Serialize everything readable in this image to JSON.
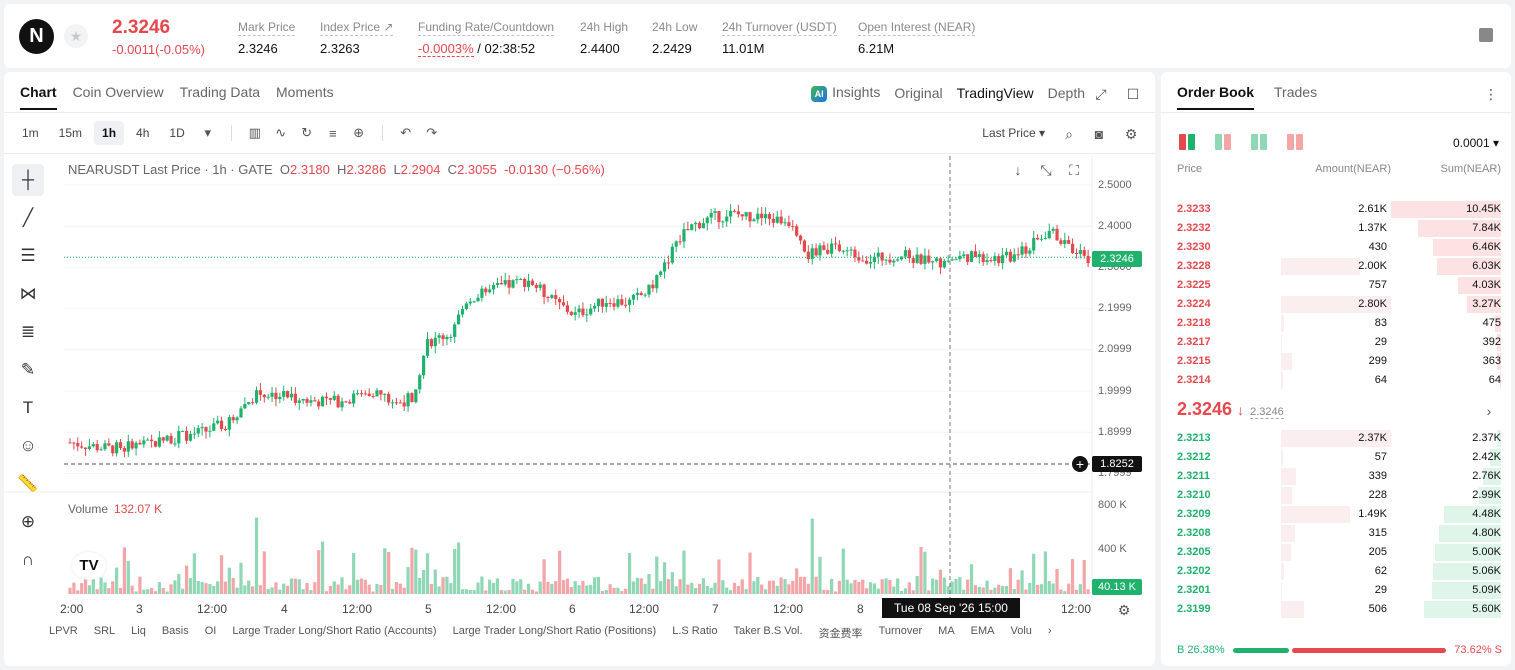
{
  "ticker": {
    "logo": "N",
    "price": "2.3246",
    "change": "-0.0011(-0.05%)",
    "stats": [
      {
        "label": "Mark Price",
        "value": "2.3246"
      },
      {
        "label": "Index Price ↗",
        "value": "2.3263"
      },
      {
        "label": "Funding Rate/Countdown",
        "value": "-0.0003%",
        "value2": "/ 02:38:52"
      },
      {
        "label": "24h High",
        "value": "2.4400"
      },
      {
        "label": "24h Low",
        "value": "2.2429"
      },
      {
        "label": "24h Turnover (USDT)",
        "value": "11.01M"
      },
      {
        "label": "Open Interest (NEAR)",
        "value": "6.21M"
      }
    ]
  },
  "chart_tabs": [
    "Chart",
    "Coin Overview",
    "Trading Data",
    "Moments"
  ],
  "view_tabs": {
    "insights": "Insights",
    "ai_badge": "AI",
    "original": "Original",
    "tradingview": "TradingView",
    "depth": "Depth"
  },
  "timeframes": [
    "1m",
    "15m",
    "1h",
    "4h",
    "1D"
  ],
  "active_timeframe": "1h",
  "last_price_select": "Last Price",
  "legend": {
    "symbol": "NEARUSDT Last Price · 1h · GATE",
    "o": "2.3180",
    "h": "2.3286",
    "l": "2.2904",
    "c": "2.3055",
    "chg": "-0.0130 (−0.56%)",
    "o_lbl": "O",
    "h_lbl": "H",
    "l_lbl": "L",
    "c_lbl": "C"
  },
  "volume": {
    "label": "Volume",
    "value": "132.07 K"
  },
  "price_axis": [
    "2.5000",
    "2.4000",
    "2.3000",
    "2.1999",
    "2.0999",
    "1.9999",
    "1.8999",
    "1.7999"
  ],
  "volume_axis": [
    "800 K",
    "400 K"
  ],
  "current_price_tag": "2.3246",
  "crosshair_price_tag": "1.8252",
  "volume_tag": "40.13 K",
  "time_axis": [
    "2:00",
    "3",
    "12:00",
    "4",
    "12:00",
    "5",
    "12:00",
    "6",
    "12:00",
    "7",
    "12:00",
    "8",
    "12:00"
  ],
  "crosshair_time": "Tue 08 Sep '26   15:00",
  "indicators": [
    "LPVR",
    "SRL",
    "Liq",
    "Basis",
    "OI",
    "Large Trader Long/Short Ratio (Accounts)",
    "Large Trader Long/Short Ratio (Positions)",
    "L.S Ratio",
    "Taker B.S Vol.",
    "资金费率",
    "Turnover",
    "MA",
    "EMA",
    "Volu"
  ],
  "colors": {
    "up": "#20b26c",
    "down": "#e5484d",
    "up_vol": "#8fd7b5",
    "down_vol": "#f3a5a8"
  },
  "order_book": {
    "tabs": [
      "Order Book",
      "Trades"
    ],
    "precision": "0.0001",
    "headers": {
      "price": "Price",
      "amount": "Amount(NEAR)",
      "sum": "Sum(NEAR)"
    },
    "asks": [
      {
        "price": "2.3233",
        "amount": "2.61K",
        "sum": "10.45K",
        "amt_frac": 0,
        "sum_frac": 1.0
      },
      {
        "price": "2.3232",
        "amount": "1.37K",
        "sum": "7.84K",
        "amt_frac": 0,
        "sum_frac": 0.75
      },
      {
        "price": "2.3230",
        "amount": "430",
        "sum": "6.46K",
        "amt_frac": 0,
        "sum_frac": 0.62
      },
      {
        "price": "2.3228",
        "amount": "2.00K",
        "sum": "6.03K",
        "amt_frac": 0.72,
        "sum_frac": 0.58
      },
      {
        "price": "2.3225",
        "amount": "757",
        "sum": "4.03K",
        "amt_frac": 0,
        "sum_frac": 0.39
      },
      {
        "price": "2.3224",
        "amount": "2.80K",
        "sum": "3.27K",
        "amt_frac": 1.0,
        "sum_frac": 0.31
      },
      {
        "price": "2.3218",
        "amount": "83",
        "sum": "475",
        "amt_frac": 0.03,
        "sum_frac": 0.05
      },
      {
        "price": "2.3217",
        "amount": "29",
        "sum": "392",
        "amt_frac": 0.01,
        "sum_frac": 0.04
      },
      {
        "price": "2.3215",
        "amount": "299",
        "sum": "363",
        "amt_frac": 0.1,
        "sum_frac": 0.035
      },
      {
        "price": "2.3214",
        "amount": "64",
        "sum": "64",
        "amt_frac": 0.02,
        "sum_frac": 0.006
      }
    ],
    "mid_price": "2.3246",
    "mid_arrow": "↓",
    "mark_price": "2.3246",
    "bids": [
      {
        "price": "2.3213",
        "amount": "2.37K",
        "sum": "2.37K",
        "amt_frac": 1.0,
        "sum_frac": 0.04
      },
      {
        "price": "2.3212",
        "amount": "57",
        "sum": "2.42K",
        "amt_frac": 0.02,
        "sum_frac": 0.1
      },
      {
        "price": "2.3211",
        "amount": "339",
        "sum": "2.76K",
        "amt_frac": 0.14,
        "sum_frac": 0.16
      },
      {
        "price": "2.3210",
        "amount": "228",
        "sum": "2.99K",
        "amt_frac": 0.1,
        "sum_frac": 0.2
      },
      {
        "price": "2.3209",
        "amount": "1.49K",
        "sum": "4.48K",
        "amt_frac": 0.63,
        "sum_frac": 0.52
      },
      {
        "price": "2.3208",
        "amount": "315",
        "sum": "4.80K",
        "amt_frac": 0.13,
        "sum_frac": 0.56
      },
      {
        "price": "2.3205",
        "amount": "205",
        "sum": "5.00K",
        "amt_frac": 0.09,
        "sum_frac": 0.6
      },
      {
        "price": "2.3202",
        "amount": "62",
        "sum": "5.06K",
        "amt_frac": 0.03,
        "sum_frac": 0.62
      },
      {
        "price": "2.3201",
        "amount": "29",
        "sum": "5.09K",
        "amt_frac": 0.01,
        "sum_frac": 0.63
      },
      {
        "price": "2.3199",
        "amount": "506",
        "sum": "5.60K",
        "amt_frac": 0.21,
        "sum_frac": 0.7
      }
    ],
    "buy_ratio": "B 26.38%",
    "sell_ratio": "73.62% S",
    "buy_frac": 0.2638
  }
}
